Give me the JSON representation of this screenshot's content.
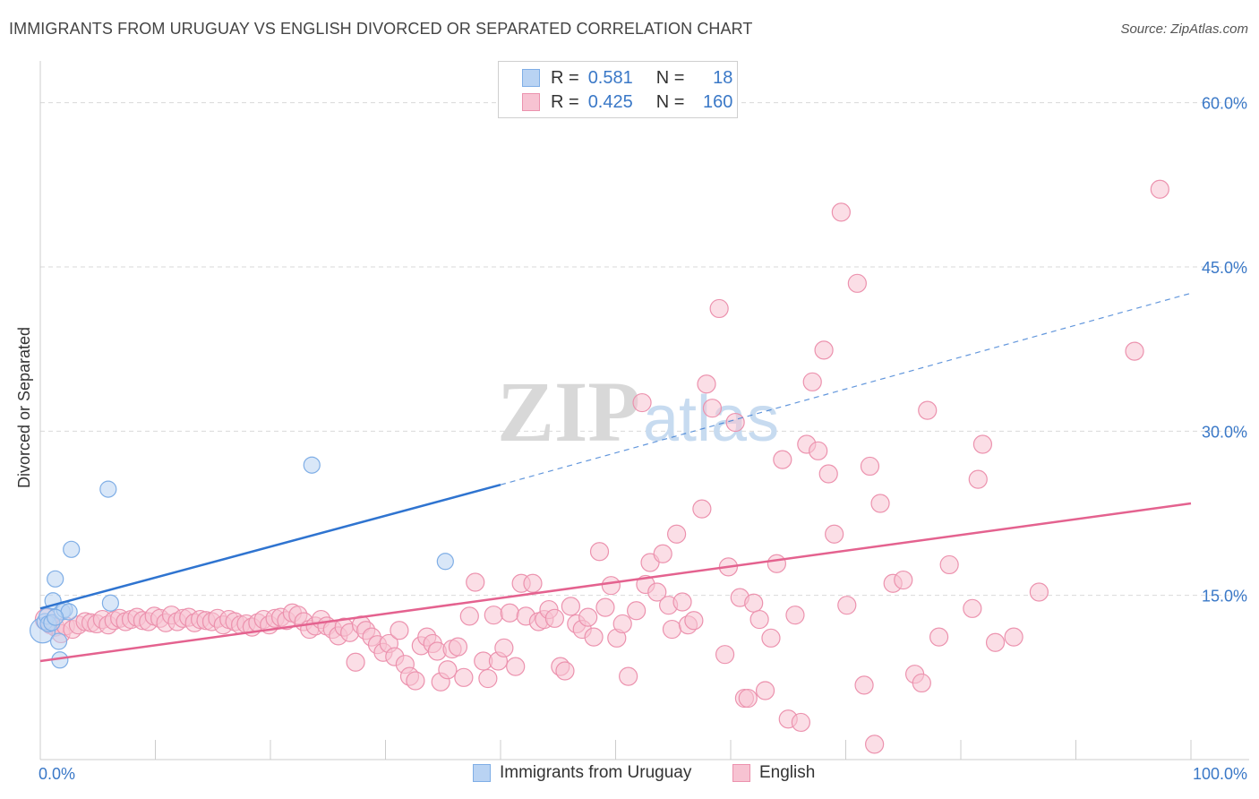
{
  "title": "IMMIGRANTS FROM URUGUAY VS ENGLISH DIVORCED OR SEPARATED CORRELATION CHART",
  "source": "Source: ZipAtlas.com",
  "watermark": {
    "zip": "ZIP",
    "atlas": "atlas"
  },
  "legend": {
    "r_label": "R =",
    "n_label": "N =",
    "rows": [
      {
        "r": "0.581",
        "n": "18"
      },
      {
        "r": "0.425",
        "n": "160"
      }
    ]
  },
  "colors": {
    "uruguay_fill": "#b9d3f3",
    "uruguay_stroke": "#7faee6",
    "uruguay_line": "#2f74d0",
    "english_fill": "#f7c3d2",
    "english_stroke": "#ec92ae",
    "english_line": "#e4628f",
    "axis_label": "#3a78c7"
  },
  "chart_data": {
    "type": "scatter",
    "title": "IMMIGRANTS FROM URUGUAY VS ENGLISH DIVORCED OR SEPARATED CORRELATION CHART",
    "xlabel": "",
    "ylabel": "Divorced or Separated",
    "xlim": [
      0,
      100
    ],
    "ylim": [
      0,
      63
    ],
    "x_tick_labels": [
      "0.0%",
      "100.0%"
    ],
    "y_ticks": [
      15,
      30,
      45,
      60
    ],
    "y_tick_labels": [
      "15.0%",
      "30.0%",
      "45.0%",
      "60.0%"
    ],
    "grid": true,
    "legend_position": "top-center",
    "series": [
      {
        "name": "Immigrants from Uruguay",
        "r": 0.581,
        "n": 18,
        "trend": {
          "x0": 0,
          "y0": 13.8,
          "x1": 40,
          "y1": 25.1,
          "dashed_to_x": 100,
          "dashed_to_y": 42.6
        },
        "points": [
          [
            0.2,
            11.8,
            14
          ],
          [
            0.4,
            12.6,
            9
          ],
          [
            0.6,
            13.1,
            9
          ],
          [
            0.7,
            12.4,
            9
          ],
          [
            1.0,
            12.5,
            9
          ],
          [
            1.1,
            14.5,
            9
          ],
          [
            1.3,
            16.5,
            9
          ],
          [
            1.6,
            10.8,
            9
          ],
          [
            1.7,
            9.1,
            9
          ],
          [
            1.9,
            13.5,
            9
          ],
          [
            2.1,
            13.7,
            9
          ],
          [
            2.5,
            13.5,
            9
          ],
          [
            2.7,
            19.2,
            9
          ],
          [
            5.9,
            24.7,
            9
          ],
          [
            6.1,
            14.3,
            9
          ],
          [
            23.6,
            26.9,
            9
          ],
          [
            35.2,
            18.1,
            9
          ],
          [
            1.3,
            13.0,
            9
          ]
        ]
      },
      {
        "name": "English",
        "r": 0.425,
        "n": 160,
        "trend": {
          "x0": 0,
          "y0": 9.0,
          "x1": 100,
          "y1": 23.4
        },
        "points": [
          [
            0.5,
            12.8,
            12
          ],
          [
            0.9,
            12.3,
            10
          ],
          [
            1.3,
            12.1,
            10
          ],
          [
            1.8,
            11.5,
            10
          ],
          [
            2.2,
            12.2,
            10
          ],
          [
            2.8,
            11.9,
            10
          ],
          [
            3.3,
            12.3,
            10
          ],
          [
            3.9,
            12.6,
            10
          ],
          [
            4.4,
            12.5,
            10
          ],
          [
            4.9,
            12.4,
            10
          ],
          [
            5.4,
            12.8,
            10
          ],
          [
            5.9,
            12.3,
            10
          ],
          [
            6.4,
            12.7,
            10
          ],
          [
            6.9,
            12.9,
            10
          ],
          [
            7.4,
            12.6,
            10
          ],
          [
            7.9,
            12.8,
            10
          ],
          [
            8.4,
            13.0,
            10
          ],
          [
            8.9,
            12.7,
            10
          ],
          [
            9.4,
            12.6,
            10
          ],
          [
            9.9,
            13.1,
            10
          ],
          [
            10.4,
            12.9,
            10
          ],
          [
            10.9,
            12.5,
            10
          ],
          [
            11.4,
            13.2,
            10
          ],
          [
            11.9,
            12.6,
            10
          ],
          [
            12.4,
            12.9,
            10
          ],
          [
            12.9,
            13.0,
            10
          ],
          [
            13.4,
            12.5,
            10
          ],
          [
            13.9,
            12.8,
            10
          ],
          [
            14.4,
            12.7,
            10
          ],
          [
            14.9,
            12.6,
            10
          ],
          [
            15.4,
            12.9,
            10
          ],
          [
            15.9,
            12.3,
            10
          ],
          [
            16.4,
            12.8,
            10
          ],
          [
            16.9,
            12.6,
            10
          ],
          [
            17.4,
            12.3,
            10
          ],
          [
            17.9,
            12.4,
            10
          ],
          [
            18.4,
            12.1,
            10
          ],
          [
            18.9,
            12.5,
            10
          ],
          [
            19.4,
            12.8,
            10
          ],
          [
            19.9,
            12.3,
            10
          ],
          [
            20.4,
            12.9,
            10
          ],
          [
            20.9,
            13.0,
            10
          ],
          [
            21.4,
            12.7,
            10
          ],
          [
            21.9,
            13.4,
            10
          ],
          [
            22.4,
            13.2,
            10
          ],
          [
            22.9,
            12.6,
            10
          ],
          [
            23.4,
            11.9,
            10
          ],
          [
            23.9,
            12.2,
            10
          ],
          [
            24.4,
            12.8,
            10
          ],
          [
            24.9,
            12.2,
            10
          ],
          [
            25.4,
            11.9,
            10
          ],
          [
            25.9,
            11.3,
            10
          ],
          [
            26.4,
            12.1,
            10
          ],
          [
            26.9,
            11.6,
            10
          ],
          [
            27.4,
            8.9,
            10
          ],
          [
            27.9,
            12.3,
            10
          ],
          [
            28.3,
            11.8,
            10
          ],
          [
            28.8,
            11.2,
            10
          ],
          [
            29.3,
            10.5,
            10
          ],
          [
            29.8,
            9.8,
            10
          ],
          [
            30.3,
            10.6,
            10
          ],
          [
            30.8,
            9.4,
            10
          ],
          [
            31.2,
            11.8,
            10
          ],
          [
            31.7,
            8.7,
            10
          ],
          [
            32.1,
            7.6,
            10
          ],
          [
            32.6,
            7.2,
            10
          ],
          [
            33.1,
            10.4,
            10
          ],
          [
            33.6,
            11.2,
            10
          ],
          [
            34.1,
            10.6,
            10
          ],
          [
            34.5,
            9.9,
            10
          ],
          [
            34.8,
            7.1,
            10
          ],
          [
            35.4,
            8.2,
            10
          ],
          [
            35.8,
            10.1,
            10
          ],
          [
            36.3,
            10.3,
            10
          ],
          [
            36.8,
            7.5,
            10
          ],
          [
            37.3,
            13.1,
            10
          ],
          [
            37.8,
            16.2,
            10
          ],
          [
            38.5,
            9.0,
            10
          ],
          [
            38.9,
            7.4,
            10
          ],
          [
            39.4,
            13.2,
            10
          ],
          [
            39.8,
            9.0,
            10
          ],
          [
            40.3,
            10.2,
            10
          ],
          [
            40.8,
            13.4,
            10
          ],
          [
            41.3,
            8.5,
            10
          ],
          [
            41.8,
            16.1,
            10
          ],
          [
            42.2,
            13.1,
            10
          ],
          [
            42.8,
            16.1,
            10
          ],
          [
            43.3,
            12.6,
            10
          ],
          [
            43.8,
            12.8,
            10
          ],
          [
            44.2,
            13.7,
            10
          ],
          [
            44.7,
            12.9,
            10
          ],
          [
            45.2,
            8.5,
            10
          ],
          [
            45.6,
            8.1,
            10
          ],
          [
            46.1,
            14.0,
            10
          ],
          [
            46.6,
            12.4,
            10
          ],
          [
            47.1,
            11.9,
            10
          ],
          [
            47.6,
            13.0,
            10
          ],
          [
            48.1,
            11.2,
            10
          ],
          [
            48.6,
            19.0,
            10
          ],
          [
            49.1,
            13.9,
            10
          ],
          [
            49.6,
            15.9,
            10
          ],
          [
            50.1,
            11.1,
            10
          ],
          [
            50.6,
            12.4,
            10
          ],
          [
            51.1,
            7.6,
            10
          ],
          [
            51.8,
            13.6,
            10
          ],
          [
            52.3,
            32.6,
            10
          ],
          [
            52.6,
            16.0,
            10
          ],
          [
            53.0,
            18.0,
            10
          ],
          [
            53.6,
            15.3,
            10
          ],
          [
            54.1,
            18.8,
            10
          ],
          [
            54.6,
            14.1,
            10
          ],
          [
            54.9,
            11.9,
            10
          ],
          [
            55.3,
            20.6,
            10
          ],
          [
            55.8,
            14.4,
            10
          ],
          [
            56.3,
            12.3,
            10
          ],
          [
            56.8,
            12.7,
            10
          ],
          [
            57.5,
            22.9,
            10
          ],
          [
            57.9,
            34.3,
            10
          ],
          [
            58.4,
            32.1,
            10
          ],
          [
            59.0,
            41.2,
            10
          ],
          [
            59.5,
            9.6,
            10
          ],
          [
            59.8,
            17.6,
            10
          ],
          [
            60.4,
            30.8,
            10
          ],
          [
            60.8,
            14.8,
            10
          ],
          [
            61.2,
            5.6,
            10
          ],
          [
            61.5,
            5.6,
            10
          ],
          [
            62.0,
            14.3,
            10
          ],
          [
            62.5,
            12.8,
            10
          ],
          [
            63.0,
            6.3,
            10
          ],
          [
            63.5,
            11.1,
            10
          ],
          [
            64.0,
            17.9,
            10
          ],
          [
            64.5,
            27.4,
            10
          ],
          [
            65.0,
            3.7,
            10
          ],
          [
            65.6,
            13.2,
            10
          ],
          [
            66.1,
            3.4,
            10
          ],
          [
            66.6,
            28.8,
            10
          ],
          [
            67.1,
            34.5,
            10
          ],
          [
            67.6,
            28.2,
            10
          ],
          [
            68.1,
            37.4,
            10
          ],
          [
            68.5,
            26.1,
            10
          ],
          [
            69.0,
            20.6,
            10
          ],
          [
            69.6,
            50.0,
            10
          ],
          [
            70.1,
            14.1,
            10
          ],
          [
            71.0,
            43.5,
            10
          ],
          [
            71.6,
            6.8,
            10
          ],
          [
            72.1,
            26.8,
            10
          ],
          [
            72.5,
            1.4,
            10
          ],
          [
            73.0,
            23.4,
            10
          ],
          [
            74.1,
            16.1,
            10
          ],
          [
            75.0,
            16.4,
            10
          ],
          [
            76.0,
            7.8,
            10
          ],
          [
            76.6,
            7.0,
            10
          ],
          [
            77.1,
            31.9,
            10
          ],
          [
            78.1,
            11.2,
            10
          ],
          [
            79.0,
            17.8,
            10
          ],
          [
            81.0,
            13.8,
            10
          ],
          [
            81.5,
            25.6,
            10
          ],
          [
            81.9,
            28.8,
            10
          ],
          [
            83.0,
            10.7,
            10
          ],
          [
            84.6,
            11.2,
            10
          ],
          [
            86.8,
            15.3,
            10
          ],
          [
            95.1,
            37.3,
            10
          ],
          [
            97.3,
            52.1,
            10
          ]
        ]
      }
    ]
  },
  "bottom_legend": [
    "Immigrants from Uruguay",
    "English"
  ]
}
